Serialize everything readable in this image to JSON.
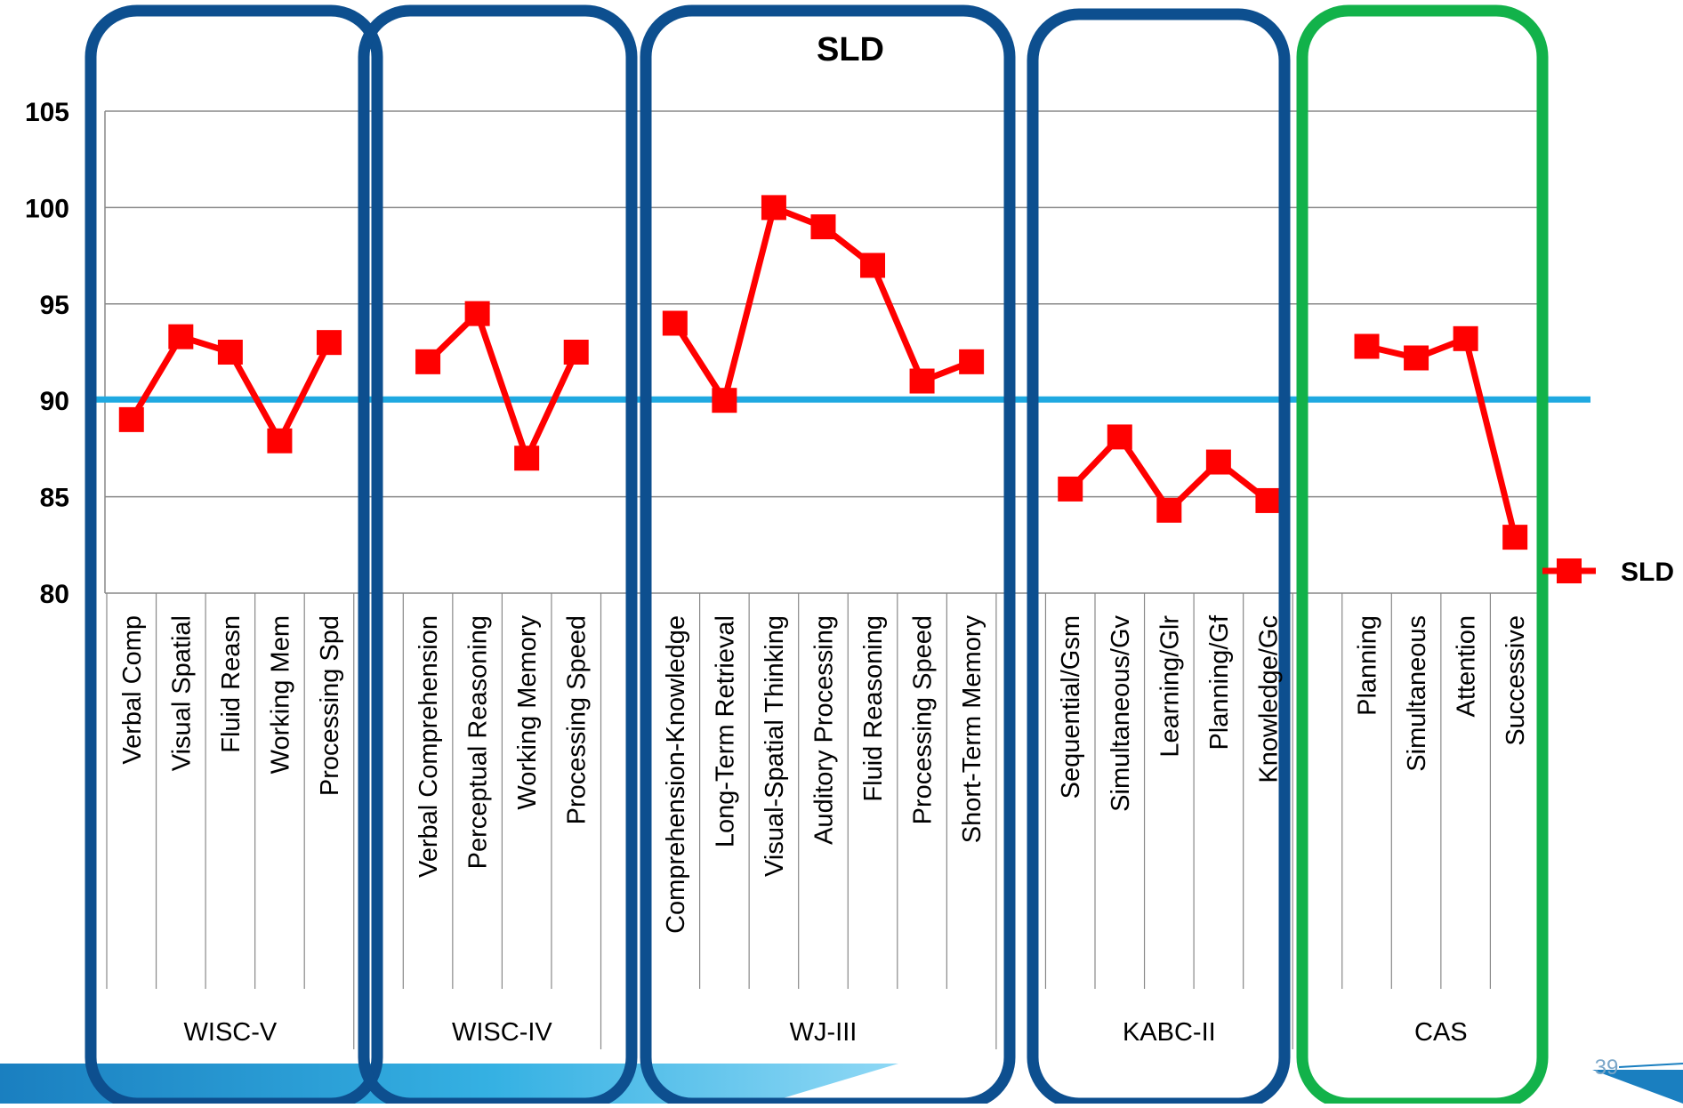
{
  "slide": {
    "page_number": "39"
  },
  "chart_data": {
    "type": "line",
    "title": "SLD",
    "ylim": [
      80,
      105
    ],
    "yticks": [
      "80",
      "85",
      "90",
      "95",
      "100",
      "105"
    ],
    "grid": true,
    "legend_position": "right",
    "reference_line": {
      "y": 90,
      "color": "#1fa9e1"
    },
    "colors": {
      "series": "#ff0000",
      "reference": "#1fa9e1",
      "box_default": "#0d4f8f",
      "box_cas": "#12b24a",
      "grid": "#888888"
    },
    "series": [
      {
        "name": "SLD",
        "color": "#ff0000"
      }
    ],
    "groups": [
      {
        "label": "WISC-V",
        "box_color": "#0d4f8f",
        "categories": [
          "Verbal Comp",
          "Visual Spatial",
          "Fluid Reasn",
          "Working Mem",
          "Processing Spd"
        ],
        "values": [
          89,
          93.3,
          92.5,
          87.9,
          93
        ]
      },
      {
        "label": "WISC-IV",
        "box_color": "#0d4f8f",
        "categories": [
          "Verbal Comprehension",
          "Perceptual Reasoning",
          "Working Memory",
          "Processing Speed"
        ],
        "values": [
          92,
          94.5,
          87,
          92.5
        ]
      },
      {
        "label": "WJ-III",
        "box_color": "#0d4f8f",
        "categories": [
          "Comprehension-Knowledge",
          "Long-Term Retrieval",
          "Visual-Spatial Thinking",
          "Auditory Processing",
          "Fluid Reasoning",
          "Processing Speed",
          "Short-Term Memory"
        ],
        "values": [
          94,
          90,
          100,
          99,
          97,
          91,
          92
        ]
      },
      {
        "label": "KABC-II",
        "box_color": "#0d4f8f",
        "categories": [
          "Sequential/Gsm",
          "Simultaneous/Gv",
          "Learning/Glr",
          "Planning/Gf",
          "Knowledge/Gc"
        ],
        "values": [
          85.4,
          88.1,
          84.3,
          86.8,
          84.8
        ]
      },
      {
        "label": "CAS",
        "box_color": "#12b24a",
        "categories": [
          "Planning",
          "Simultaneous",
          "Attention",
          "Successive"
        ],
        "values": [
          92.8,
          92.2,
          93.2,
          82.9
        ]
      }
    ]
  }
}
